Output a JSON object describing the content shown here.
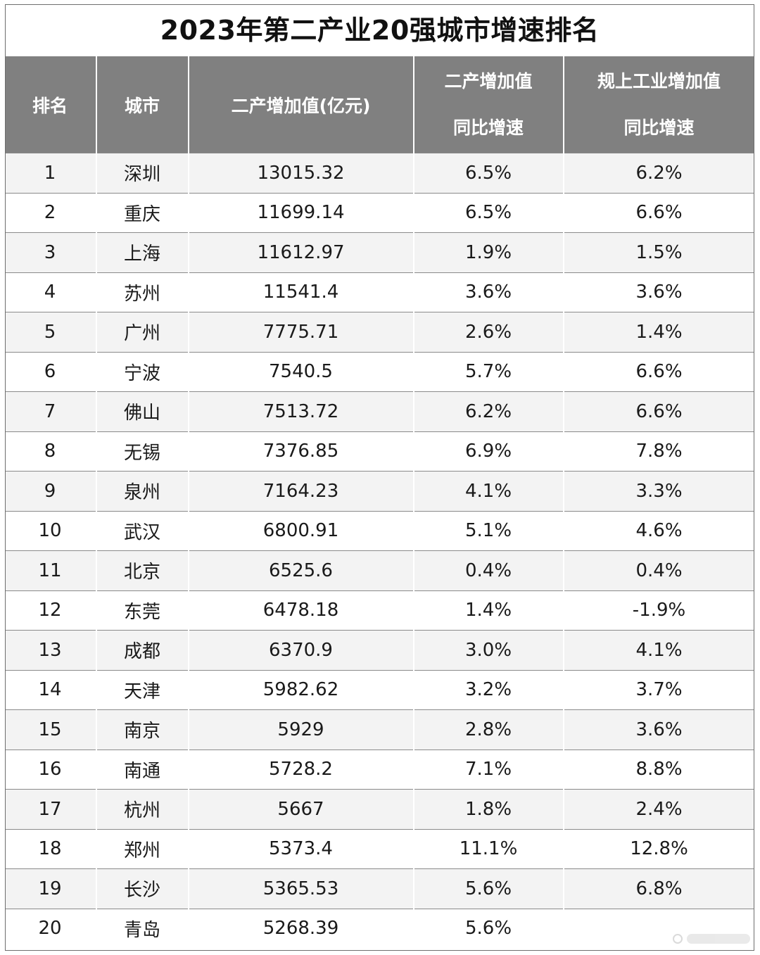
{
  "title": "2023年第二产业20强城市增速排名",
  "headers": {
    "rank": "排名",
    "city": "城市",
    "value": "二产增加值(亿元)",
    "growth_line1": "二产增加值",
    "growth_line2": "同比增速",
    "industrial_line1": "规上工业增加值",
    "industrial_line2": "同比增速"
  },
  "chart_data": {
    "type": "table",
    "title": "2023年第二产业20强城市增速排名",
    "columns": [
      "排名",
      "城市",
      "二产增加值(亿元)",
      "二产增加值 同比增速",
      "规上工业增加值 同比增速"
    ],
    "rows": [
      {
        "rank": "1",
        "city": "深圳",
        "value": "13015.32",
        "growth": "6.5%",
        "industrial": "6.2%"
      },
      {
        "rank": "2",
        "city": "重庆",
        "value": "11699.14",
        "growth": "6.5%",
        "industrial": "6.6%"
      },
      {
        "rank": "3",
        "city": "上海",
        "value": "11612.97",
        "growth": "1.9%",
        "industrial": "1.5%"
      },
      {
        "rank": "4",
        "city": "苏州",
        "value": "11541.4",
        "growth": "3.6%",
        "industrial": "3.6%"
      },
      {
        "rank": "5",
        "city": "广州",
        "value": "7775.71",
        "growth": "2.6%",
        "industrial": "1.4%"
      },
      {
        "rank": "6",
        "city": "宁波",
        "value": "7540.5",
        "growth": "5.7%",
        "industrial": "6.6%"
      },
      {
        "rank": "7",
        "city": "佛山",
        "value": "7513.72",
        "growth": "6.2%",
        "industrial": "6.6%"
      },
      {
        "rank": "8",
        "city": "无锡",
        "value": "7376.85",
        "growth": "6.9%",
        "industrial": "7.8%"
      },
      {
        "rank": "9",
        "city": "泉州",
        "value": "7164.23",
        "growth": "4.1%",
        "industrial": "3.3%"
      },
      {
        "rank": "10",
        "city": "武汉",
        "value": "6800.91",
        "growth": "5.1%",
        "industrial": "4.6%"
      },
      {
        "rank": "11",
        "city": "北京",
        "value": "6525.6",
        "growth": "0.4%",
        "industrial": "0.4%"
      },
      {
        "rank": "12",
        "city": "东莞",
        "value": "6478.18",
        "growth": "1.4%",
        "industrial": "-1.9%"
      },
      {
        "rank": "13",
        "city": "成都",
        "value": "6370.9",
        "growth": "3.0%",
        "industrial": "4.1%"
      },
      {
        "rank": "14",
        "city": "天津",
        "value": "5982.62",
        "growth": "3.2%",
        "industrial": "3.7%"
      },
      {
        "rank": "15",
        "city": "南京",
        "value": "5929",
        "growth": "2.8%",
        "industrial": "3.6%"
      },
      {
        "rank": "16",
        "city": "南通",
        "value": "5728.2",
        "growth": "7.1%",
        "industrial": "8.8%"
      },
      {
        "rank": "17",
        "city": "杭州",
        "value": "5667",
        "growth": "1.8%",
        "industrial": "2.4%"
      },
      {
        "rank": "18",
        "city": "郑州",
        "value": "5373.4",
        "growth": "11.1%",
        "industrial": "12.8%"
      },
      {
        "rank": "19",
        "city": "长沙",
        "value": "5365.53",
        "growth": "5.6%",
        "industrial": "6.8%"
      },
      {
        "rank": "20",
        "city": "青岛",
        "value": "5268.39",
        "growth": "5.6%",
        "industrial": ""
      }
    ]
  },
  "watermark": {
    "icon": "watermark-logo"
  }
}
